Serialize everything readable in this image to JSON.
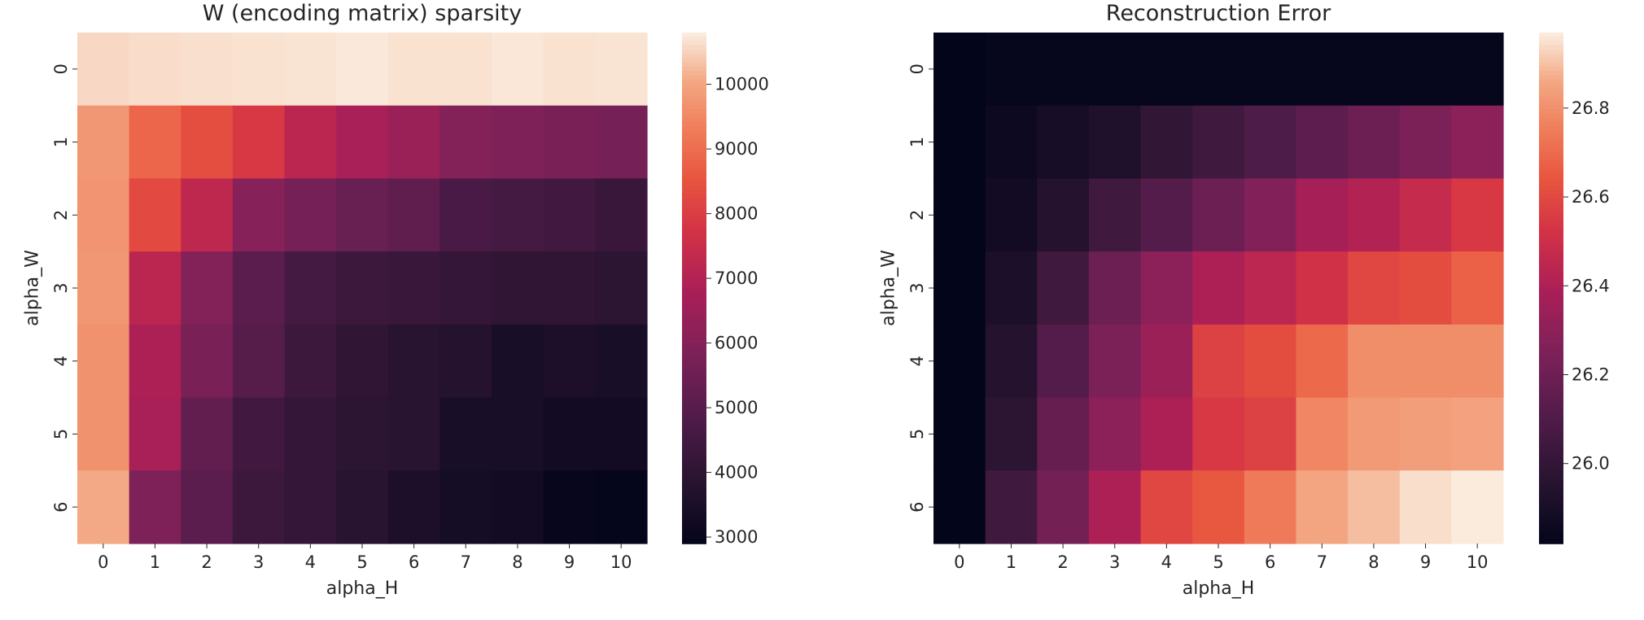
{
  "chart_data": [
    {
      "type": "heatmap",
      "title": "W (encoding matrix) sparsity",
      "xlabel": "alpha_H",
      "ylabel": "alpha_W",
      "x_categories": [
        "0",
        "1",
        "2",
        "3",
        "4",
        "5",
        "6",
        "7",
        "8",
        "9",
        "10"
      ],
      "y_categories": [
        "0",
        "1",
        "2",
        "3",
        "4",
        "5",
        "6"
      ],
      "colormap": "rocket",
      "colorbar_ticks": [
        "3000",
        "4000",
        "5000",
        "6000",
        "7000",
        "8000",
        "9000",
        "10000"
      ],
      "zlim": [
        2900,
        10800
      ],
      "values": [
        [
          10600,
          10650,
          10680,
          10700,
          10710,
          10780,
          10700,
          10700,
          10760,
          10700,
          10730
        ],
        [
          9800,
          8900,
          8400,
          7900,
          7200,
          6800,
          6500,
          6000,
          5900,
          5800,
          5700
        ],
        [
          9750,
          8300,
          7300,
          6100,
          5700,
          5400,
          5200,
          4700,
          4600,
          4500,
          4300
        ],
        [
          9800,
          7200,
          6000,
          5100,
          4600,
          4400,
          4300,
          4200,
          4100,
          4100,
          4000
        ],
        [
          9700,
          6900,
          5800,
          5000,
          4400,
          4100,
          3900,
          3800,
          3500,
          3600,
          3500
        ],
        [
          9700,
          6800,
          5300,
          4500,
          4200,
          4000,
          3900,
          3500,
          3500,
          3300,
          3300
        ],
        [
          10100,
          5900,
          5100,
          4400,
          4200,
          3900,
          3600,
          3400,
          3300,
          3000,
          2950
        ]
      ]
    },
    {
      "type": "heatmap",
      "title": "Reconstruction Error",
      "xlabel": "alpha_H",
      "ylabel": "alpha_W",
      "x_categories": [
        "0",
        "1",
        "2",
        "3",
        "4",
        "5",
        "6",
        "7",
        "8",
        "9",
        "10"
      ],
      "y_categories": [
        "0",
        "1",
        "2",
        "3",
        "4",
        "5",
        "6"
      ],
      "colormap": "rocket",
      "colorbar_ticks": [
        "26.0",
        "26.2",
        "26.4",
        "26.6",
        "26.8"
      ],
      "zlim": [
        25.82,
        26.97
      ],
      "values": [
        [
          25.82,
          25.83,
          25.83,
          25.83,
          25.83,
          25.83,
          25.83,
          25.83,
          25.83,
          25.83,
          25.83
        ],
        [
          25.82,
          25.86,
          25.9,
          25.93,
          26.0,
          26.05,
          26.1,
          26.15,
          26.2,
          26.25,
          26.3
        ],
        [
          25.82,
          25.88,
          25.95,
          26.05,
          26.12,
          26.2,
          26.27,
          26.38,
          26.42,
          26.48,
          26.55
        ],
        [
          25.82,
          25.92,
          26.05,
          26.2,
          26.3,
          26.4,
          26.45,
          26.52,
          26.6,
          26.62,
          26.68
        ],
        [
          25.82,
          25.95,
          26.12,
          26.25,
          26.35,
          26.58,
          26.62,
          26.7,
          26.8,
          26.8,
          26.8
        ],
        [
          25.82,
          25.98,
          26.18,
          26.3,
          26.4,
          26.55,
          26.58,
          26.78,
          26.83,
          26.84,
          26.85
        ],
        [
          25.82,
          26.05,
          26.22,
          26.4,
          26.6,
          26.65,
          26.75,
          26.86,
          26.9,
          26.95,
          26.97
        ]
      ]
    }
  ]
}
